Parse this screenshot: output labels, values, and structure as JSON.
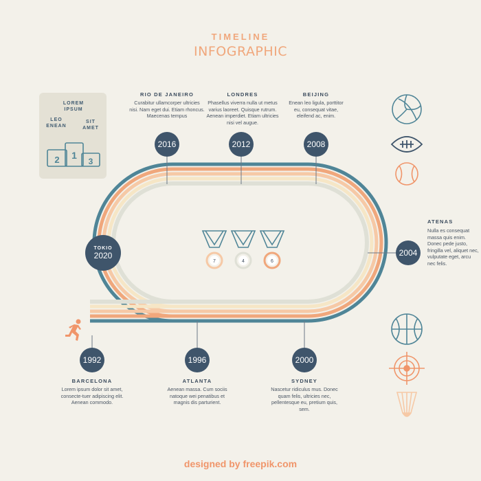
{
  "header": {
    "title_line1": "TIMELINE",
    "title_line2": "INFOGRAPHIC"
  },
  "podium": {
    "first_label": "LOREM IPSUM",
    "second_label": "LEO ENEAN",
    "third_label": "SIT AMET",
    "first_num": "1",
    "second_num": "2",
    "third_num": "3"
  },
  "events_top": [
    {
      "year": "2016",
      "city": "RIO DE JANEIRO",
      "text": "Curabitur ullamcorper ultricies nisi. Nam eget dui. Etiam rhoncus. Maecenas tempus"
    },
    {
      "year": "2012",
      "city": "LONDRES",
      "text": "Phasellus viverra nulla ut metus varius laoreet. Quisque rutrum. Aenean imperdiet. Etiam ultricies nisi vel augue."
    },
    {
      "year": "2008",
      "city": "BEIJING",
      "text": "Enean leo ligula, porttitor eu, consequat vitae, eleifend ac, enim."
    }
  ],
  "event_tokio": {
    "year": "2020",
    "city": "TOKIO"
  },
  "event_atenas": {
    "year": "2004",
    "city": "ATENAS",
    "text": "Nulla es consequat massa quis enim. Donec pede justo, fringilla vel, aliquet nec, vulputate eget, arcu nec felis."
  },
  "events_bottom": [
    {
      "year": "1992",
      "city": "BARCELONA",
      "text": "Lorem ipsum dolor sit amet, consecte-tuer adipiscing elit. Aenean commodo."
    },
    {
      "year": "1996",
      "city": "ATLANTA",
      "text": "Aenean massa. Cum sociis natoque wei penatibus et magnis dis parturient."
    },
    {
      "year": "2000",
      "city": "SYDNEY",
      "text": "Nascetur ridiculus mus. Donec quam felis, ultricies nec, pellentesque eu, pretium quis, sem."
    }
  ],
  "medals": [
    "7",
    "4",
    "6"
  ],
  "footer": {
    "credit": "designed by freepik.com"
  },
  "icons": [
    "volleyball-icon",
    "football-icon",
    "baseball-icon",
    "basketball-icon",
    "target-icon",
    "shuttlecock-icon",
    "runner-icon"
  ],
  "colors": {
    "navy": "#3f556b",
    "teal": "#4f8597",
    "orange": "#f0a77c",
    "peach": "#f6c9a6",
    "cream": "#f6e6c6",
    "gray": "#dfe0d6"
  }
}
